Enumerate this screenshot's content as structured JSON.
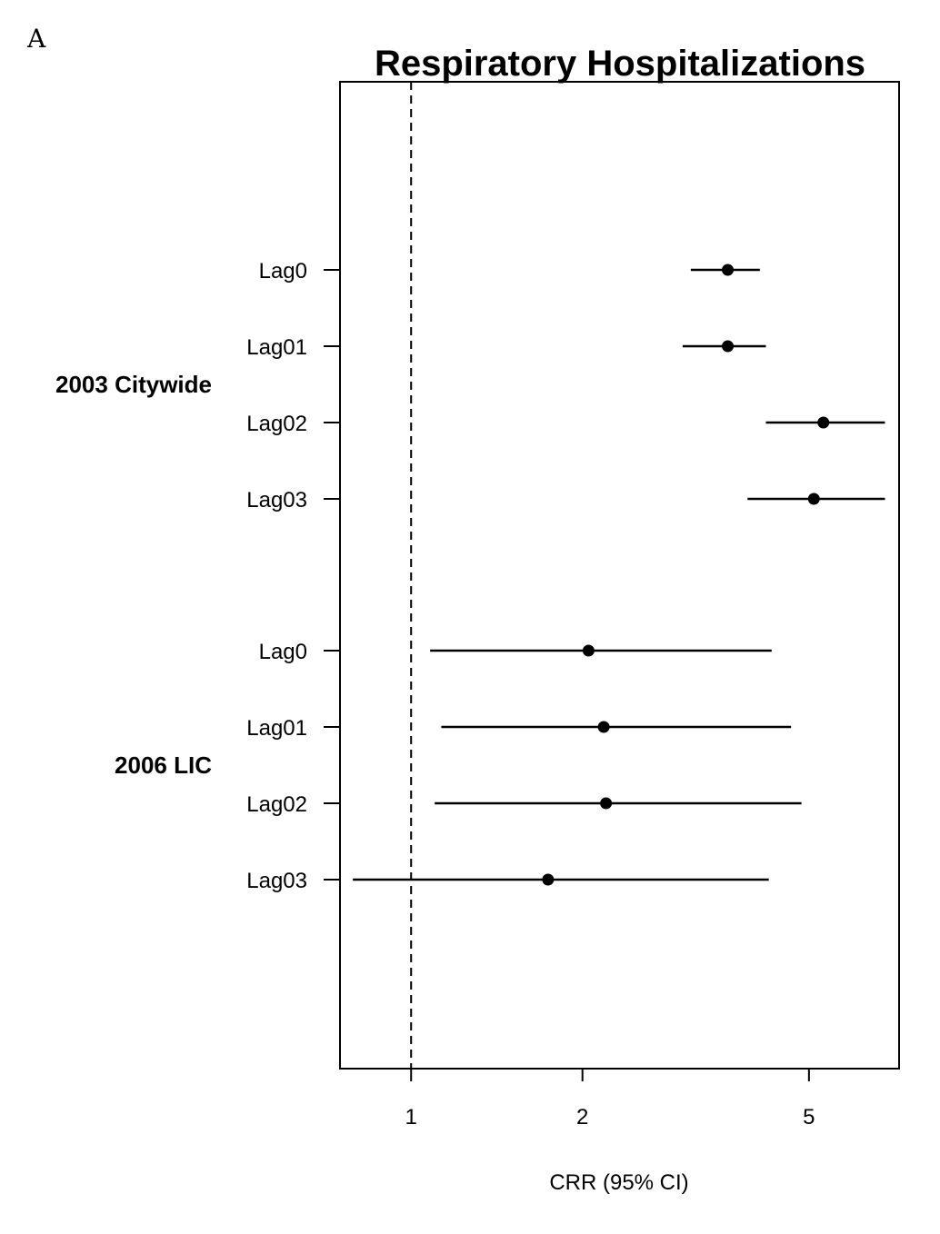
{
  "panel_letter": "A",
  "chart_data": {
    "type": "forest",
    "title": "Respiratory Hospitalizations",
    "xlabel": "CRR (95% CI)",
    "x_scale": "log",
    "xlim": [
      0.75,
      7.2
    ],
    "x_ticks": [
      1,
      2,
      5
    ],
    "x_tick_labels": [
      "1",
      "2",
      "5"
    ],
    "reference_line": 1,
    "groups": [
      {
        "name": "2003 Citywide",
        "rows": [
          {
            "label": "Lag0",
            "estimate": 3.6,
            "lower": 3.1,
            "upper": 4.1
          },
          {
            "label": "Lag01",
            "estimate": 3.6,
            "lower": 3.0,
            "upper": 4.2
          },
          {
            "label": "Lag02",
            "estimate": 5.3,
            "lower": 4.2,
            "upper": 6.8
          },
          {
            "label": "Lag03",
            "estimate": 5.1,
            "lower": 3.9,
            "upper": 6.8
          }
        ]
      },
      {
        "name": "2006 LIC",
        "rows": [
          {
            "label": "Lag0",
            "estimate": 2.05,
            "lower": 1.08,
            "upper": 4.3
          },
          {
            "label": "Lag01",
            "estimate": 2.18,
            "lower": 1.13,
            "upper": 4.65
          },
          {
            "label": "Lag02",
            "estimate": 2.2,
            "lower": 1.1,
            "upper": 4.85
          },
          {
            "label": "Lag03",
            "estimate": 1.74,
            "lower": 0.79,
            "upper": 4.25
          }
        ]
      }
    ],
    "grid": false,
    "legend": "none"
  }
}
